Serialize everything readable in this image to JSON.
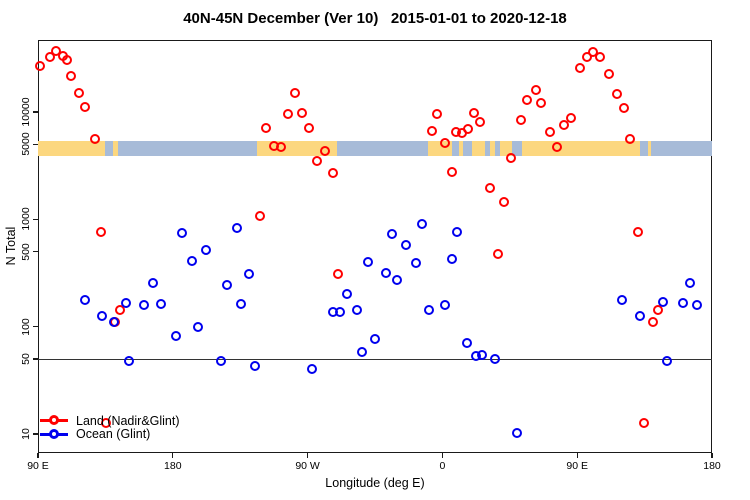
{
  "colors": {
    "land_series": "#ff0000",
    "ocean_series": "#0000ee",
    "strip_land": "#fcd77f",
    "strip_ocean": "#a7bbd8",
    "axis": "#1a1a1a"
  },
  "legend": {
    "land_label": "Land (Nadir&Glint)",
    "ocean_label": "Ocean (Glint)"
  },
  "chart_data": {
    "type": "scatter",
    "title": "40N-45N December (Ver 10)   2015-01-01 to 2020-12-18",
    "xlabel": "Longitude (deg E)",
    "ylabel": "N Total",
    "x_axis": {
      "note": "longitude axis wraps past 180, spanning 450 deg total (90E to 180 second pass)",
      "range_extended_deg": [
        90,
        540
      ],
      "tick_positions_deg": [
        90,
        180,
        270,
        360,
        450,
        540
      ],
      "tick_labels": [
        "90 E",
        "180",
        "90 W",
        "0",
        "90 E",
        "180"
      ]
    },
    "y_axis": {
      "scale": "log10",
      "range": [
        7,
        47000
      ],
      "tick_values": [
        10000,
        5000,
        1000,
        500,
        100,
        50,
        10
      ],
      "tick_labels": [
        "10000",
        "5000",
        "1000",
        "500",
        "100",
        "50",
        "10"
      ]
    },
    "reference_line_y": 50,
    "legend_position": "bottom-left",
    "grid": false,
    "series": [
      {
        "name": "Land (Nadir&Glint)",
        "color": "#ff0000",
        "points": [
          [
            92,
            26300
          ],
          [
            98.7,
            31900
          ],
          [
            102.7,
            36200
          ],
          [
            107.4,
            32500
          ],
          [
            110,
            29900
          ],
          [
            112.7,
            21600
          ],
          [
            118,
            14700
          ],
          [
            122,
            10900
          ],
          [
            128.7,
            5480
          ],
          [
            132.7,
            745
          ],
          [
            136.1,
            12.6
          ],
          [
            142.1,
            108
          ],
          [
            145.4,
            140
          ],
          [
            238.9,
            1070
          ],
          [
            242.9,
            6950
          ],
          [
            248.2,
            4720
          ],
          [
            252.9,
            4620
          ],
          [
            257.6,
            9380
          ],
          [
            262.2,
            14700
          ],
          [
            266.9,
            9580
          ],
          [
            271.6,
            6950
          ],
          [
            276.9,
            3420
          ],
          [
            282.3,
            4240
          ],
          [
            287.6,
            2640
          ],
          [
            291,
            303
          ],
          [
            353.7,
            6510
          ],
          [
            357.1,
            9380
          ],
          [
            362.4,
            5030
          ],
          [
            367.1,
            2700
          ],
          [
            369.7,
            6370
          ],
          [
            373.8,
            6240
          ],
          [
            377.8,
            6790
          ],
          [
            381.8,
            9580
          ],
          [
            385.8,
            7890
          ],
          [
            392.4,
            1920
          ],
          [
            397.8,
            464
          ],
          [
            401.8,
            1420
          ],
          [
            406.5,
            3650
          ],
          [
            413.2,
            8240
          ],
          [
            417.2,
            12900
          ],
          [
            423.2,
            15700
          ],
          [
            426.5,
            11900
          ],
          [
            432.5,
            6370
          ],
          [
            437.2,
            4620
          ],
          [
            441.9,
            7410
          ],
          [
            446.5,
            8610
          ],
          [
            452.6,
            25200
          ],
          [
            457.2,
            31800
          ],
          [
            461.2,
            35500
          ],
          [
            465.9,
            31800
          ],
          [
            471.9,
            22100
          ],
          [
            477.3,
            14400
          ],
          [
            481.9,
            10700
          ],
          [
            485.9,
            5480
          ],
          [
            491.3,
            745
          ],
          [
            495.3,
            12.6
          ],
          [
            501.3,
            108
          ],
          [
            504.6,
            140
          ]
        ]
      },
      {
        "name": "Ocean (Glint)",
        "color": "#0000ee",
        "points": [
          [
            122,
            173
          ],
          [
            133.4,
            123
          ],
          [
            141.4,
            108
          ],
          [
            149.4,
            163
          ],
          [
            151.4,
            47
          ],
          [
            161.4,
            156
          ],
          [
            167.4,
            250
          ],
          [
            172.8,
            159
          ],
          [
            182.8,
            81
          ],
          [
            186.8,
            730
          ],
          [
            193.5,
            400
          ],
          [
            197.5,
            98
          ],
          [
            202.8,
            507
          ],
          [
            212.8,
            47
          ],
          [
            216.9,
            239
          ],
          [
            223.5,
            811
          ],
          [
            226.2,
            161
          ],
          [
            231.6,
            303
          ],
          [
            235.5,
            42
          ],
          [
            273.6,
            40
          ],
          [
            287.6,
            134
          ],
          [
            292.3,
            134
          ],
          [
            297,
            197
          ],
          [
            303.6,
            140
          ],
          [
            307,
            57
          ],
          [
            311,
            392
          ],
          [
            315.6,
            75
          ],
          [
            323,
            309
          ],
          [
            327,
            714
          ],
          [
            330.3,
            266
          ],
          [
            336.3,
            564
          ],
          [
            343,
            383
          ],
          [
            347,
            885
          ],
          [
            351.7,
            140
          ],
          [
            362.4,
            156
          ],
          [
            367.1,
            418
          ],
          [
            370.4,
            745
          ],
          [
            377.1,
            70
          ],
          [
            383.1,
            52
          ],
          [
            387.1,
            54
          ],
          [
            395.8,
            49
          ],
          [
            410.5,
            10
          ],
          [
            480.6,
            173
          ],
          [
            492.6,
            123
          ],
          [
            508,
            166
          ],
          [
            510.6,
            47
          ],
          [
            521.3,
            163
          ],
          [
            526,
            250
          ],
          [
            530.6,
            156
          ]
        ]
      }
    ],
    "land_ocean_strip": {
      "description": "horizontal map band near N=5000 showing land vs ocean along the 40N-45N latitude belt",
      "y_center_value": 5000,
      "land_color": "#fcd77f",
      "ocean_color": "#a7bbd8",
      "segments": [
        {
          "from": 90,
          "to": 135,
          "type": "land"
        },
        {
          "from": 135,
          "to": 140,
          "type": "ocean"
        },
        {
          "from": 140,
          "to": 143.5,
          "type": "land"
        },
        {
          "from": 143.5,
          "to": 236,
          "type": "ocean"
        },
        {
          "from": 236,
          "to": 289.5,
          "type": "land"
        },
        {
          "from": 289.5,
          "to": 350.5,
          "type": "ocean"
        },
        {
          "from": 350.5,
          "to": 366.5,
          "type": "land"
        },
        {
          "from": 366.5,
          "to": 371,
          "type": "ocean"
        },
        {
          "from": 371,
          "to": 374,
          "type": "land"
        },
        {
          "from": 374,
          "to": 380,
          "type": "ocean"
        },
        {
          "from": 380,
          "to": 388.5,
          "type": "land"
        },
        {
          "from": 388.5,
          "to": 392,
          "type": "ocean"
        },
        {
          "from": 392,
          "to": 395,
          "type": "land"
        },
        {
          "from": 395,
          "to": 398.5,
          "type": "ocean"
        },
        {
          "from": 398.5,
          "to": 406.5,
          "type": "land"
        },
        {
          "from": 406.5,
          "to": 413,
          "type": "ocean"
        },
        {
          "from": 413,
          "to": 492,
          "type": "land"
        },
        {
          "from": 492,
          "to": 497,
          "type": "ocean"
        },
        {
          "from": 497,
          "to": 499.5,
          "type": "land"
        },
        {
          "from": 499.5,
          "to": 540,
          "type": "ocean"
        }
      ]
    }
  }
}
